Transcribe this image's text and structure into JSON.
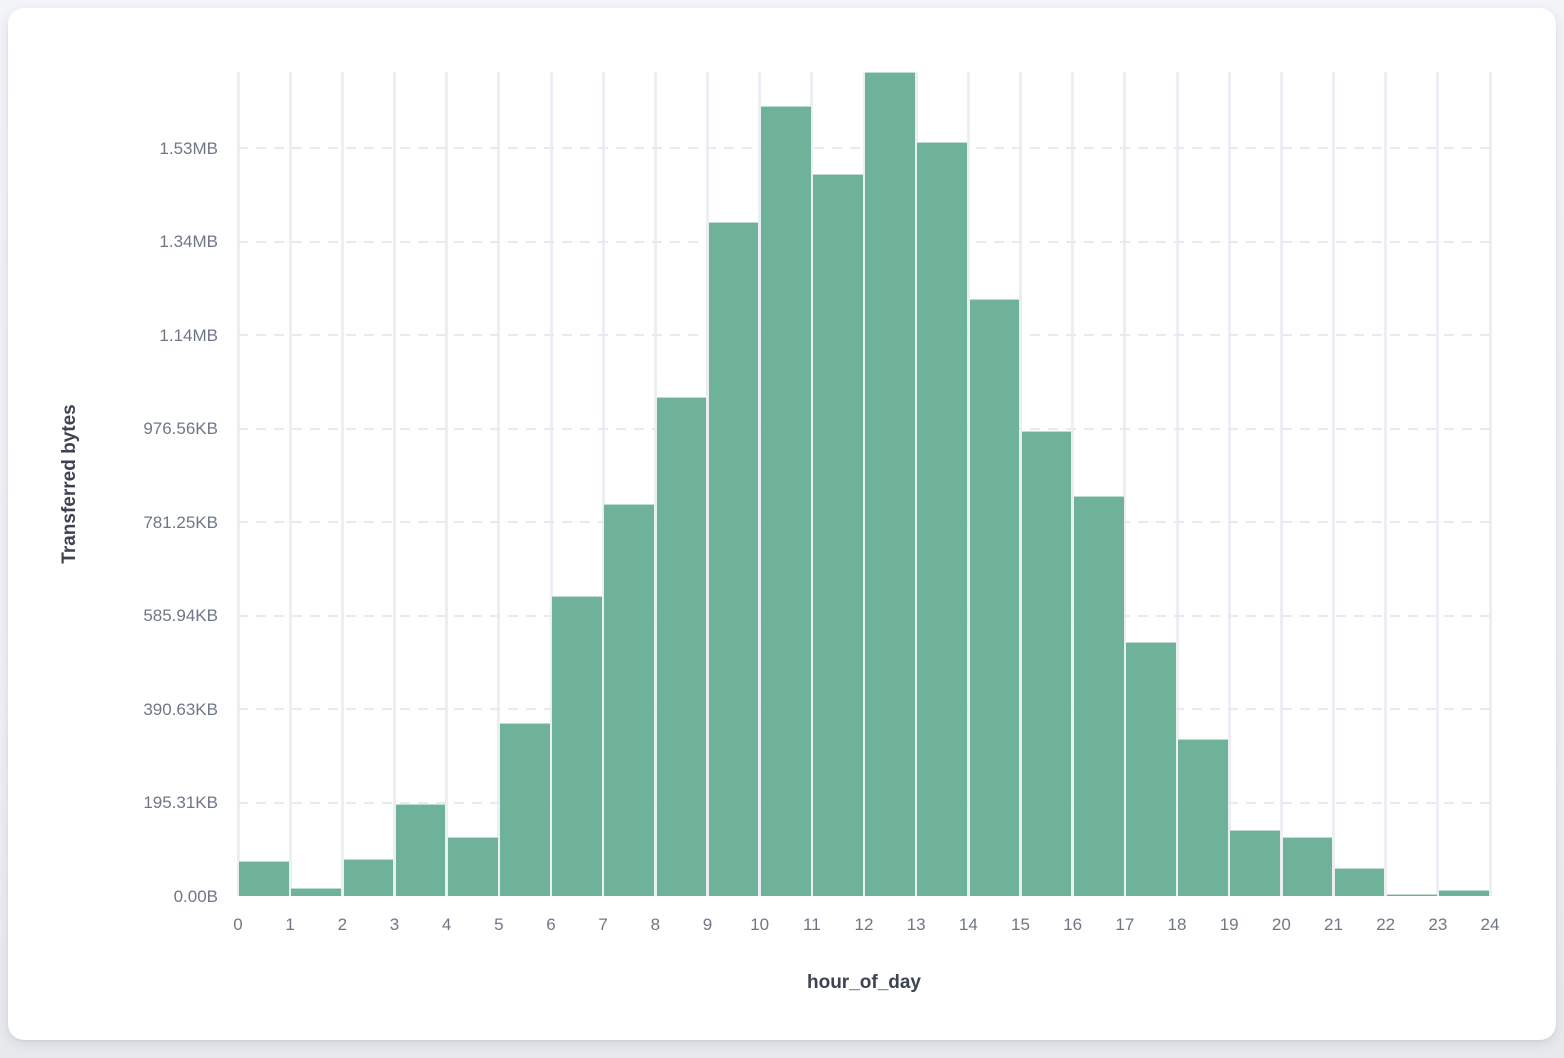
{
  "chart_data": {
    "type": "bar",
    "title": "",
    "xlabel": "hour_of_day",
    "ylabel": "Transferred bytes",
    "categories": [
      0,
      1,
      2,
      3,
      4,
      5,
      6,
      7,
      8,
      9,
      10,
      11,
      12,
      13,
      14,
      15,
      16,
      17,
      18,
      19,
      20,
      21,
      22,
      23
    ],
    "values": [
      75000,
      16500,
      78500,
      197000,
      125500,
      370000,
      642000,
      838000,
      1067000,
      1442000,
      1690000,
      1544000,
      1763000,
      1613000,
      1278000,
      995000,
      856000,
      543000,
      336000,
      141000,
      126000,
      60000,
      5000,
      13000
    ],
    "unit": "bytes",
    "ylim": [
      0,
      1763000
    ],
    "xlim": [
      0,
      24
    ],
    "y_ticks": [
      {
        "bytes": 0,
        "label": "0.00B"
      },
      {
        "bytes": 200000,
        "label": "195.31KB"
      },
      {
        "bytes": 400000,
        "label": "390.63KB"
      },
      {
        "bytes": 600000,
        "label": "585.94KB"
      },
      {
        "bytes": 800000,
        "label": "781.25KB"
      },
      {
        "bytes": 1000000,
        "label": "976.56KB"
      },
      {
        "bytes": 1200000,
        "label": "1.14MB"
      },
      {
        "bytes": 1400000,
        "label": "1.34MB"
      },
      {
        "bytes": 1600000,
        "label": "1.53MB"
      }
    ],
    "x_tick_labels": [
      "0",
      "1",
      "2",
      "3",
      "4",
      "5",
      "6",
      "7",
      "8",
      "9",
      "10",
      "11",
      "12",
      "13",
      "14",
      "15",
      "16",
      "17",
      "18",
      "19",
      "20",
      "21",
      "22",
      "23",
      "24"
    ],
    "grid": {
      "vertical": "solid",
      "horizontal": "dashed",
      "baseline_axis_line": "none"
    },
    "legend_position": "none",
    "colors": {
      "bar": "#6FB29A",
      "bar_gap": "#FFFFFF",
      "grid_vertical": "#ECEEF3",
      "grid_horizontal": "#E8EAF0",
      "tick_label": "#6F7787",
      "axis_title": "#3C4352",
      "card_background": "#FFFFFF",
      "page_background": "#EEF0F3"
    }
  }
}
